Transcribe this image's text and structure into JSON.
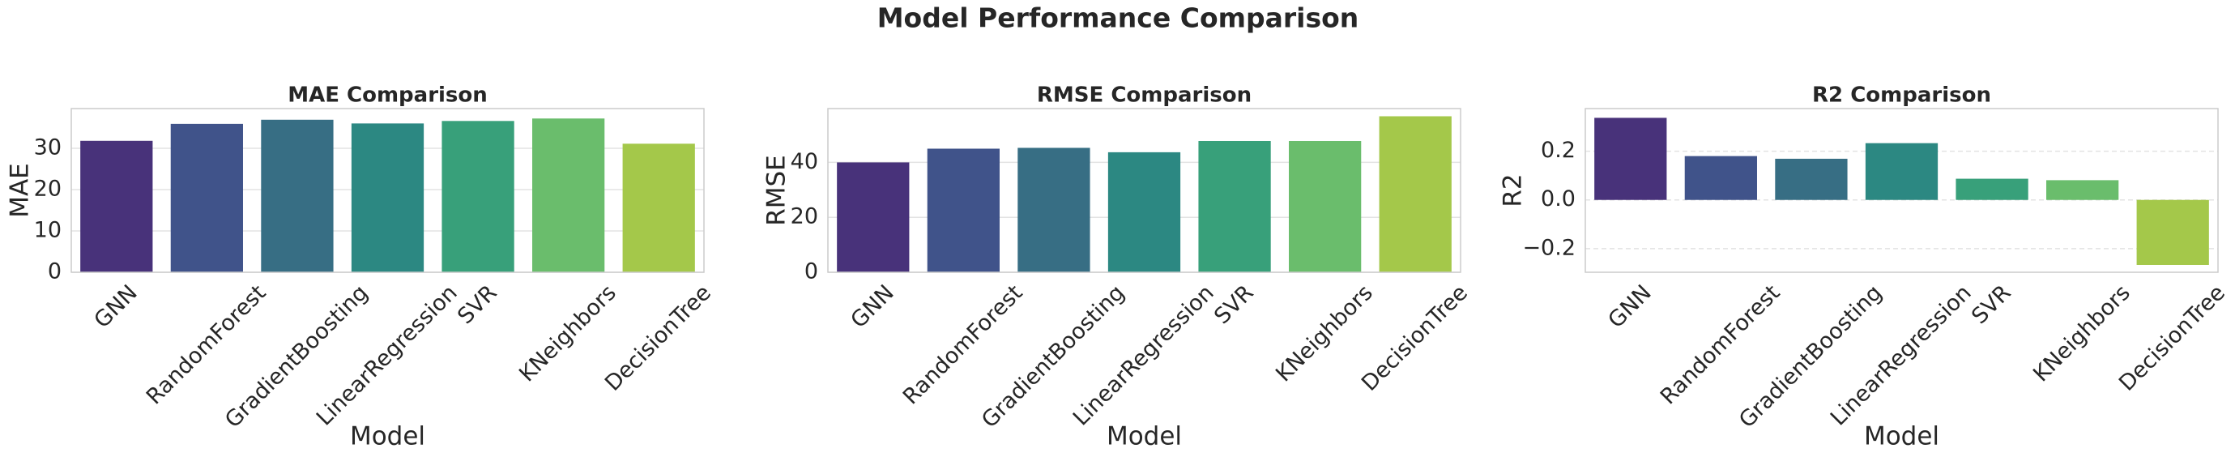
{
  "title": "Model Performance Comparison",
  "chart_data": [
    {
      "type": "bar",
      "title": "MAE Comparison",
      "x_label": "Model",
      "y_label": "MAE",
      "categories": [
        "GNN",
        "RandomForest",
        "GradientBoosting",
        "LinearRegression",
        "SVR",
        "KNeighbors",
        "DecisionTree"
      ],
      "values": [
        31.8,
        35.9,
        36.9,
        36.0,
        36.6,
        37.2,
        31.1
      ],
      "colors": [
        "#48327a",
        "#40538a",
        "#376e84",
        "#2c8882",
        "#38a07a",
        "#6abd6c",
        "#a4c84a"
      ],
      "ylim": [
        0,
        39.6
      ],
      "yticks": [
        0,
        10,
        20,
        30
      ],
      "grid": true
    },
    {
      "type": "bar",
      "title": "RMSE Comparison",
      "x_label": "Model",
      "y_label": "RMSE",
      "categories": [
        "GNN",
        "RandomForest",
        "GradientBoosting",
        "LinearRegression",
        "SVR",
        "KNeighbors",
        "DecisionTree"
      ],
      "values": [
        40.0,
        45.0,
        45.3,
        43.7,
        47.8,
        47.8,
        56.8
      ],
      "colors": [
        "#48327a",
        "#40538a",
        "#376e84",
        "#2c8882",
        "#38a07a",
        "#6abd6c",
        "#a4c84a"
      ],
      "ylim": [
        0,
        59.6
      ],
      "yticks": [
        0,
        20,
        40
      ],
      "grid": true
    },
    {
      "type": "bar",
      "title": "R2 Comparison",
      "x_label": "Model",
      "y_label": "R2",
      "categories": [
        "GNN",
        "RandomForest",
        "GradientBoosting",
        "LinearRegression",
        "SVR",
        "KNeighbors",
        "DecisionTree"
      ],
      "values": [
        0.337,
        0.18,
        0.169,
        0.233,
        0.087,
        0.081,
        -0.267
      ],
      "colors": [
        "#48327a",
        "#40538a",
        "#376e84",
        "#2c8882",
        "#38a07a",
        "#6abd6c",
        "#a4c84a"
      ],
      "ylim": [
        -0.297,
        0.375
      ],
      "yticks": [
        {
          "value": -0.2,
          "label": "−0.2"
        },
        {
          "value": 0,
          "label": "0.0"
        },
        0.2
      ],
      "grid": true
    }
  ]
}
